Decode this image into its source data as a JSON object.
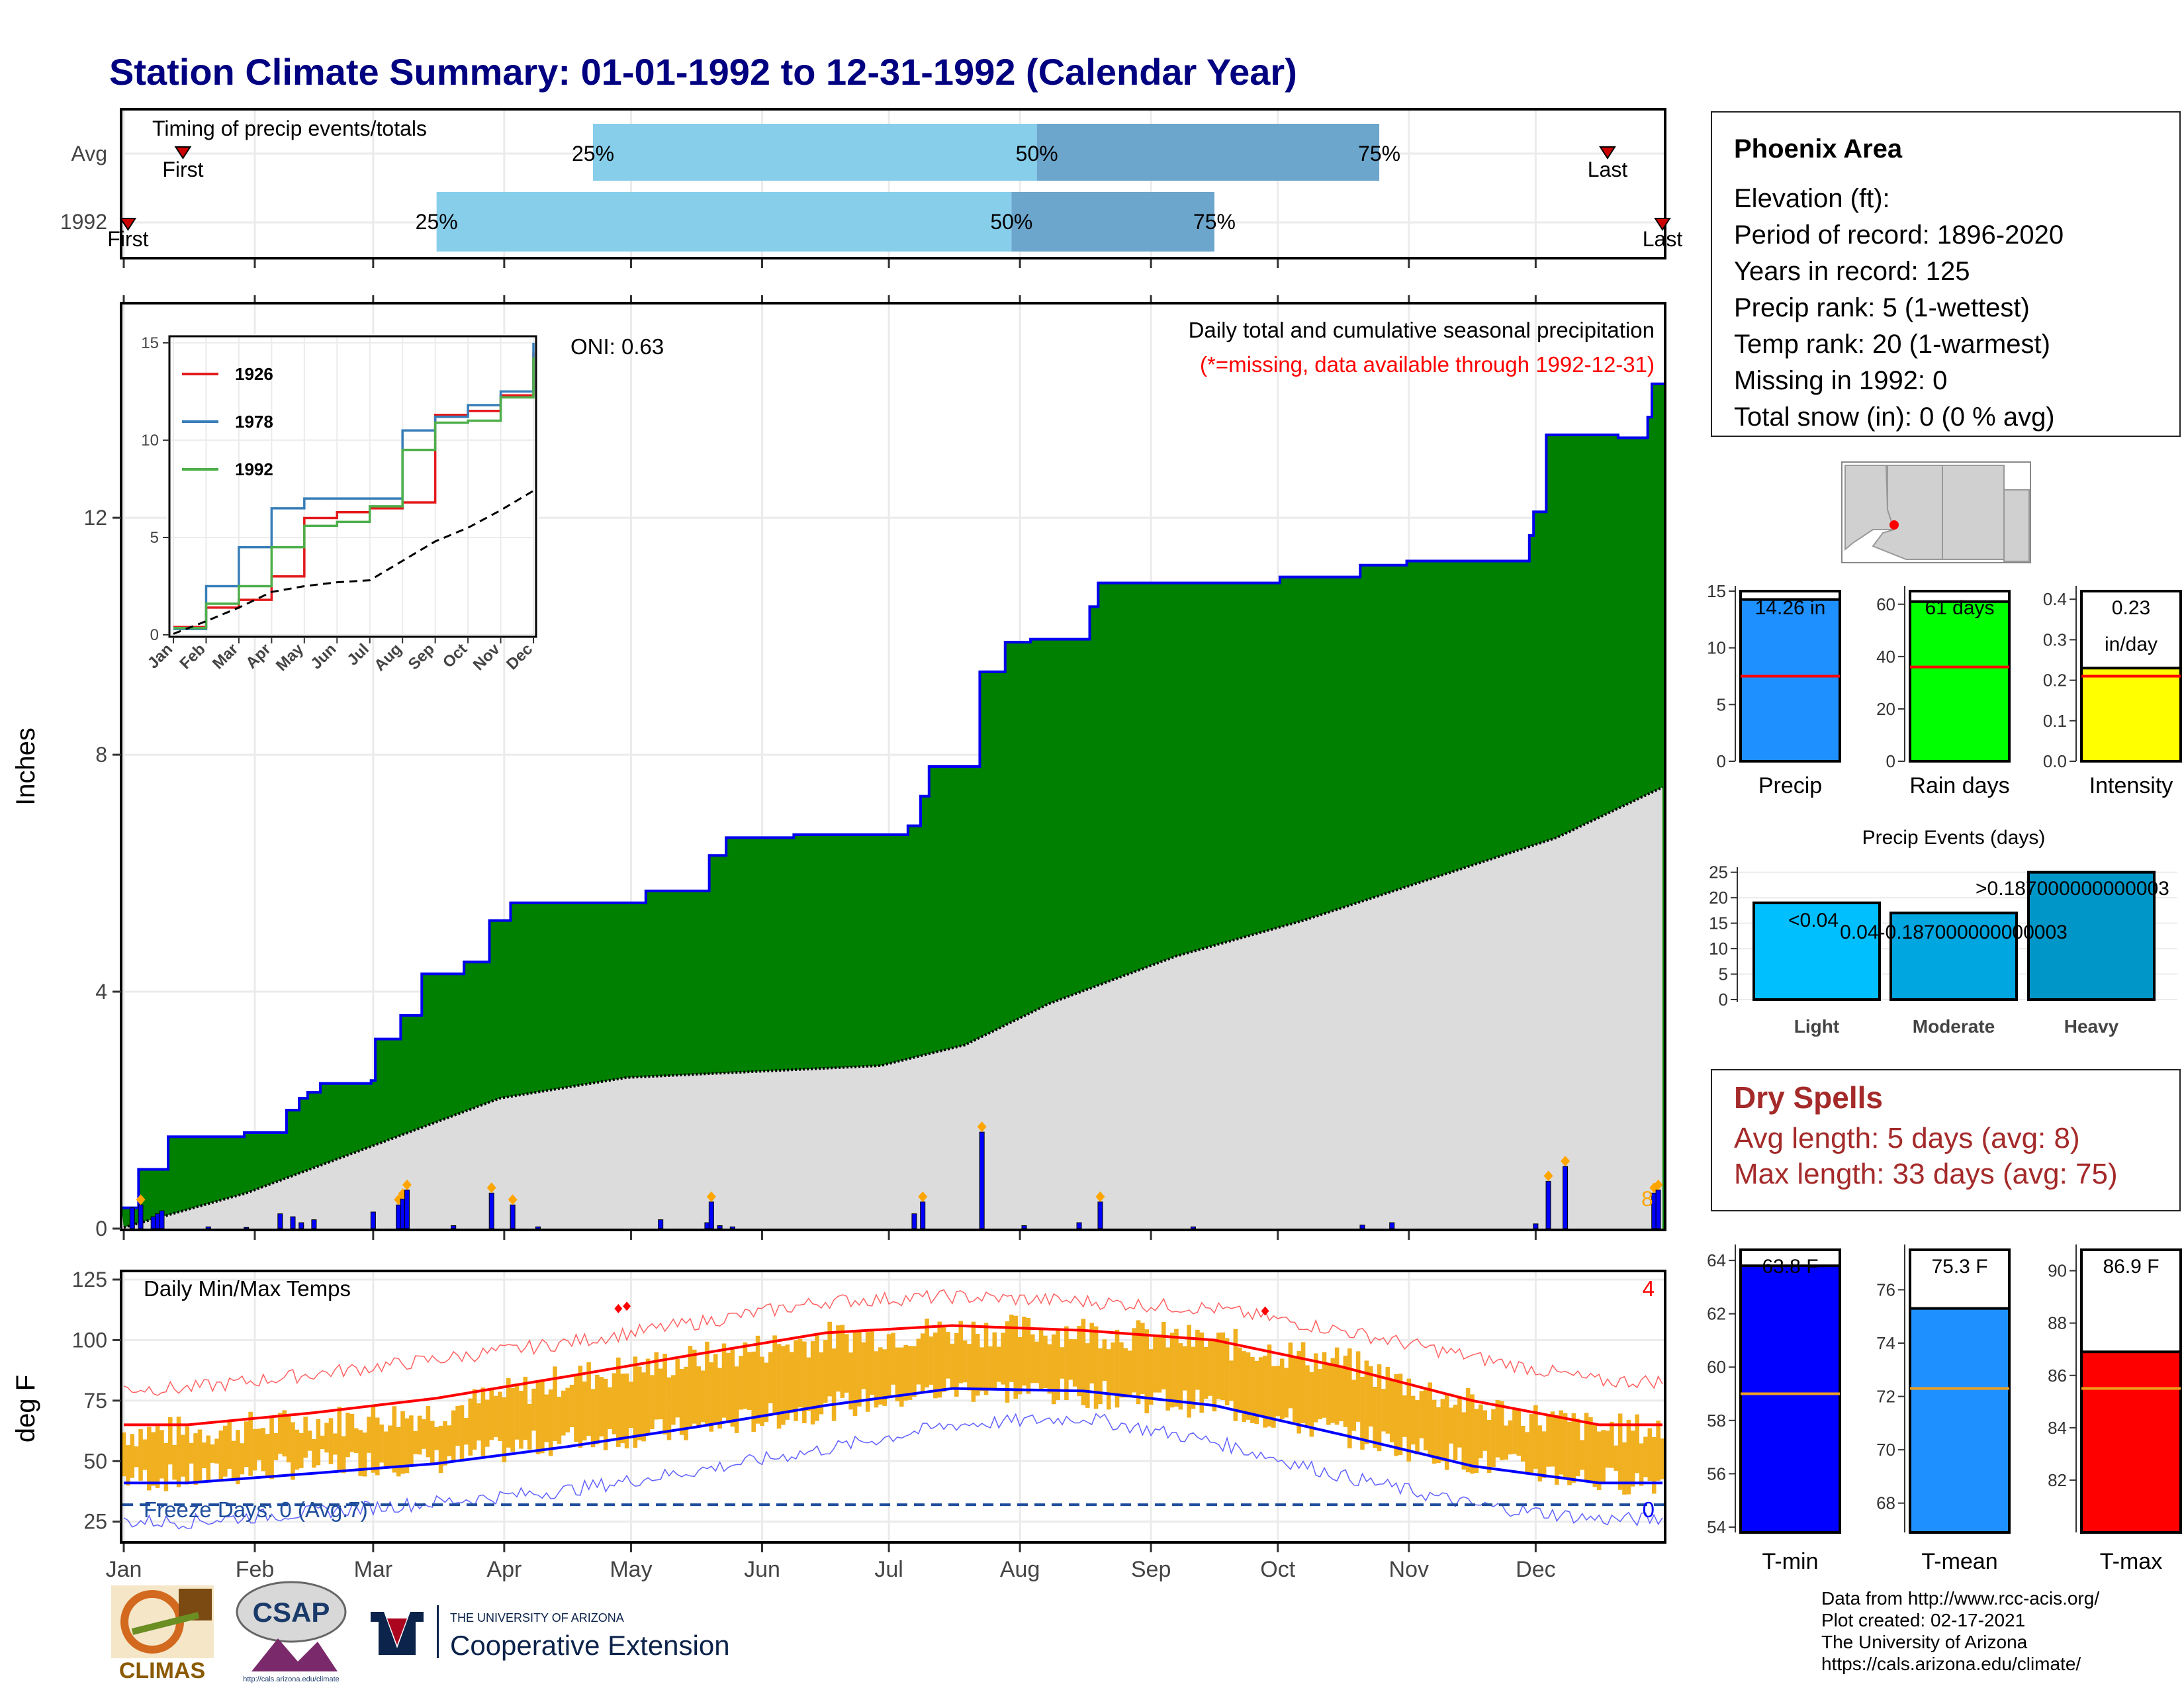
{
  "title": "Station Climate Summary: 01-01-1992 to 12-31-1992 (Calendar Year)",
  "colors": {
    "title": "#000080",
    "q1": "#87ceeb",
    "q2": "#6ca6cd",
    "precip_area": "#008000",
    "clim_area": "#dcdcdc",
    "bars": "#0000ff",
    "tmax": "#ff0000",
    "tmin": "#0000ff",
    "temp_bars": "#f0b020"
  },
  "timing": {
    "title": "Timing of precip events/totals",
    "rows": [
      {
        "label": "Avg",
        "first": "First",
        "last": "Last",
        "q25": "25%",
        "q50": "50%",
        "q75": "75%",
        "first_doy": 15,
        "p25": 112,
        "p50": 217,
        "p75": 298,
        "last_doy": 352
      },
      {
        "label": "1992",
        "first": "First",
        "last": "Last",
        "q25": "25%",
        "q50": "50%",
        "q75": "75%",
        "first_doy": 2,
        "p25": 75,
        "p50": 211,
        "p75": 259,
        "last_doy": 365
      }
    ]
  },
  "precip_panel": {
    "subtitle": "Daily total and cumulative seasonal precipitation",
    "missing_note": "(*=missing, data available through 1992-12-31)",
    "oni": "ONI: 0.63",
    "ylabel": "Inches",
    "corner_count": "8",
    "yticks": [
      "0",
      "4",
      "8",
      "12"
    ]
  },
  "chart_data": [
    {
      "type": "area",
      "name": "cumulative_precip_1992",
      "ylabel": "Inches",
      "ylim": [
        0,
        15.6
      ],
      "x_unit": "day of year",
      "cum_1992": [
        [
          1,
          0.35
        ],
        [
          5,
          1.0
        ],
        [
          12,
          1.55
        ],
        [
          30,
          1.62
        ],
        [
          40,
          2.0
        ],
        [
          43,
          2.2
        ],
        [
          45,
          2.3
        ],
        [
          48,
          2.45
        ],
        [
          60,
          2.5
        ],
        [
          61,
          3.2
        ],
        [
          67,
          3.6
        ],
        [
          72,
          4.3
        ],
        [
          82,
          4.5
        ],
        [
          88,
          5.2
        ],
        [
          93,
          5.5
        ],
        [
          125,
          5.7
        ],
        [
          140,
          6.3
        ],
        [
          144,
          6.6
        ],
        [
          160,
          6.65
        ],
        [
          187,
          6.8
        ],
        [
          190,
          7.3
        ],
        [
          192,
          7.8
        ],
        [
          204,
          9.4
        ],
        [
          210,
          9.9
        ],
        [
          216,
          9.95
        ],
        [
          230,
          10.5
        ],
        [
          232,
          10.9
        ],
        [
          275,
          11.0
        ],
        [
          294,
          11.2
        ],
        [
          305,
          11.27
        ],
        [
          334,
          11.7
        ],
        [
          335,
          12.1
        ],
        [
          338,
          13.4
        ],
        [
          355,
          13.35
        ],
        [
          362,
          13.7
        ],
        [
          363,
          14.26
        ],
        [
          365,
          14.26
        ]
      ],
      "cum_avg": [
        [
          1,
          0.02
        ],
        [
          30,
          0.6
        ],
        [
          60,
          1.4
        ],
        [
          90,
          2.2
        ],
        [
          120,
          2.55
        ],
        [
          150,
          2.65
        ],
        [
          180,
          2.75
        ],
        [
          200,
          3.1
        ],
        [
          220,
          3.8
        ],
        [
          250,
          4.6
        ],
        [
          280,
          5.2
        ],
        [
          310,
          5.9
        ],
        [
          340,
          6.6
        ],
        [
          365,
          7.45
        ]
      ],
      "daily_1992": [
        [
          3,
          0.35
        ],
        [
          5,
          0.4
        ],
        [
          8,
          0.2
        ],
        [
          9,
          0.25
        ],
        [
          10,
          0.3
        ],
        [
          21,
          0.03
        ],
        [
          30,
          0.02
        ],
        [
          38,
          0.25
        ],
        [
          41,
          0.2
        ],
        [
          43,
          0.1
        ],
        [
          46,
          0.15
        ],
        [
          60,
          0.28
        ],
        [
          66,
          0.4
        ],
        [
          67,
          0.5
        ],
        [
          68,
          0.65
        ],
        [
          79,
          0.05
        ],
        [
          88,
          0.6
        ],
        [
          93,
          0.4
        ],
        [
          99,
          0.03
        ],
        [
          128,
          0.15
        ],
        [
          139,
          0.1
        ],
        [
          140,
          0.45
        ],
        [
          142,
          0.05
        ],
        [
          145,
          0.03
        ],
        [
          188,
          0.25
        ],
        [
          190,
          0.45
        ],
        [
          204,
          1.63
        ],
        [
          214,
          0.05
        ],
        [
          227,
          0.1
        ],
        [
          232,
          0.45
        ],
        [
          254,
          0.03
        ],
        [
          294,
          0.06
        ],
        [
          301,
          0.1
        ],
        [
          335,
          0.08
        ],
        [
          338,
          0.8
        ],
        [
          342,
          1.05
        ],
        [
          363,
          0.6
        ],
        [
          364,
          0.65
        ]
      ]
    },
    {
      "type": "line",
      "name": "inset_cumulative_precip",
      "x": [
        "Jan",
        "Feb",
        "Mar",
        "Apr",
        "May",
        "Jun",
        "Jul",
        "Aug",
        "Sep",
        "Oct",
        "Nov",
        "Dec"
      ],
      "yticks": [
        "0",
        "5",
        "10",
        "15"
      ],
      "series": [
        {
          "name": "1926",
          "color": "#e31a1c",
          "values": [
            0.4,
            1.4,
            1.8,
            3.0,
            6.0,
            6.3,
            6.5,
            6.8,
            11.3,
            11.5,
            12.3,
            14.5
          ]
        },
        {
          "name": "1978",
          "color": "#377eb8",
          "values": [
            0.3,
            2.5,
            4.5,
            6.5,
            7.0,
            7.0,
            7.0,
            10.5,
            11.2,
            11.8,
            12.5,
            15.0
          ]
        },
        {
          "name": "1992",
          "color": "#4daf4a",
          "values": [
            0.35,
            1.6,
            2.5,
            4.5,
            5.6,
            5.8,
            6.6,
            9.5,
            10.9,
            11.0,
            12.2,
            14.26
          ]
        },
        {
          "name": "avg",
          "color": "#000000",
          "values": [
            0.05,
            0.7,
            1.4,
            2.2,
            2.5,
            2.7,
            2.8,
            3.8,
            4.8,
            5.5,
            6.4,
            7.4
          ]
        }
      ]
    },
    {
      "type": "line",
      "name": "daily_temps",
      "title": "Daily Min/Max Temps",
      "ylabel": "deg F",
      "ylim": [
        17,
        128
      ],
      "yticks": [
        "25",
        "50",
        "75",
        "100",
        "125"
      ],
      "x": [
        "Jan",
        "Feb",
        "Mar",
        "Apr",
        "May",
        "Jun",
        "Jul",
        "Aug",
        "Sep",
        "Oct",
        "Nov",
        "Dec"
      ],
      "avg_max": [
        65,
        70,
        76,
        85,
        94,
        103,
        106,
        104,
        100,
        89,
        75,
        65
      ],
      "avg_min": [
        41,
        45,
        49,
        56,
        64,
        73,
        80,
        79,
        73,
        61,
        48,
        41
      ],
      "record_max": [
        80,
        86,
        92,
        99,
        107,
        116,
        118,
        116,
        113,
        104,
        93,
        83
      ],
      "record_min": [
        25,
        29,
        33,
        38,
        46,
        55,
        65,
        68,
        58,
        44,
        32,
        26
      ],
      "obs_max": [
        62,
        66,
        70,
        84,
        92,
        101,
        104,
        104,
        99,
        91,
        73,
        63
      ],
      "obs_min": [
        43,
        49,
        50,
        59,
        63,
        72,
        80,
        78,
        73,
        62,
        50,
        42
      ],
      "freeze_line": 32,
      "freeze_label": "Freeze Days: 0 (Avg:7)",
      "freeze_count": "0",
      "hot_count": "4"
    },
    {
      "type": "bar",
      "name": "annual_bars",
      "groups": [
        {
          "label": "Precip",
          "value": 14.26,
          "avg": 7.5,
          "text": "14.26 in",
          "ylim": [
            0,
            15
          ],
          "yticks": [
            "0",
            "5",
            "10",
            "15"
          ],
          "color": "#1e90ff"
        },
        {
          "label": "Rain days",
          "value": 61,
          "avg": 36,
          "text": "61 days",
          "ylim": [
            0,
            65
          ],
          "yticks": [
            "0",
            "20",
            "40",
            "60"
          ],
          "color": "#00ff00"
        },
        {
          "label": "Intensity",
          "value": 0.23,
          "avg": 0.21,
          "text": "0.23",
          "text2": "in/day",
          "ylim": [
            0,
            0.42
          ],
          "yticks": [
            "0.0",
            "0.1",
            "0.2",
            "0.3",
            "0.4"
          ],
          "color": "#ffff00"
        }
      ]
    },
    {
      "type": "bar",
      "name": "precip_events",
      "title": "Precip Events (days)",
      "categories": [
        "Light",
        "Moderate",
        "Heavy"
      ],
      "values": [
        19,
        17,
        25
      ],
      "labels": [
        "<0.04",
        "0.04-0.187000000000003",
        ">0.187000000000003"
      ],
      "ylim": [
        0,
        26
      ],
      "yticks": [
        "0",
        "5",
        "10",
        "15",
        "20",
        "25"
      ]
    },
    {
      "type": "bar",
      "name": "annual_temps",
      "groups": [
        {
          "label": "T-min",
          "value": 63.8,
          "avg": 59.0,
          "text": "63.8 F",
          "ylim": [
            53.8,
            64.4
          ],
          "yticks": [
            "54",
            "56",
            "58",
            "60",
            "62",
            "64"
          ],
          "color": "#0000ff"
        },
        {
          "label": "T-mean",
          "value": 75.3,
          "avg": 72.3,
          "text": "75.3 F",
          "ylim": [
            66.9,
            77.5
          ],
          "yticks": [
            "68",
            "70",
            "72",
            "74",
            "76"
          ],
          "color": "#1e90ff"
        },
        {
          "label": "T-max",
          "value": 86.9,
          "avg": 85.5,
          "text": "86.9 F",
          "ylim": [
            80.0,
            90.8
          ],
          "yticks": [
            "82",
            "84",
            "86",
            "88",
            "90"
          ],
          "color": "#ff0000"
        }
      ]
    }
  ],
  "station": {
    "name": "Phoenix Area",
    "elevation": "Elevation (ft):",
    "period": "Period of record: 1896-2020",
    "years": "Years in record: 125",
    "precip_rank": "Precip rank: 5 (1-wettest)",
    "temp_rank": "Temp rank: 20 (1-warmest)",
    "missing": "Missing in 1992: 0",
    "snow": "Total snow (in): 0 (0 % avg)"
  },
  "dry_spells": {
    "title": "Dry Spells",
    "avg": "Avg length: 5 days (avg: 8)",
    "max": "Max length: 33 days (avg: 75)"
  },
  "credits": {
    "line1": "Data from http://www.rcc-acis.org/",
    "line2": "Plot created: 02-17-2021",
    "line3": "The University of Arizona",
    "line4": "https://cals.arizona.edu/climate/"
  },
  "logos": {
    "climas": "CLIMAS",
    "csap": "CSAP",
    "csap_url": "http://cals.arizona.edu/climate",
    "ua_small": "THE UNIVERSITY OF ARIZONA",
    "ua_big": "Cooperative Extension"
  }
}
